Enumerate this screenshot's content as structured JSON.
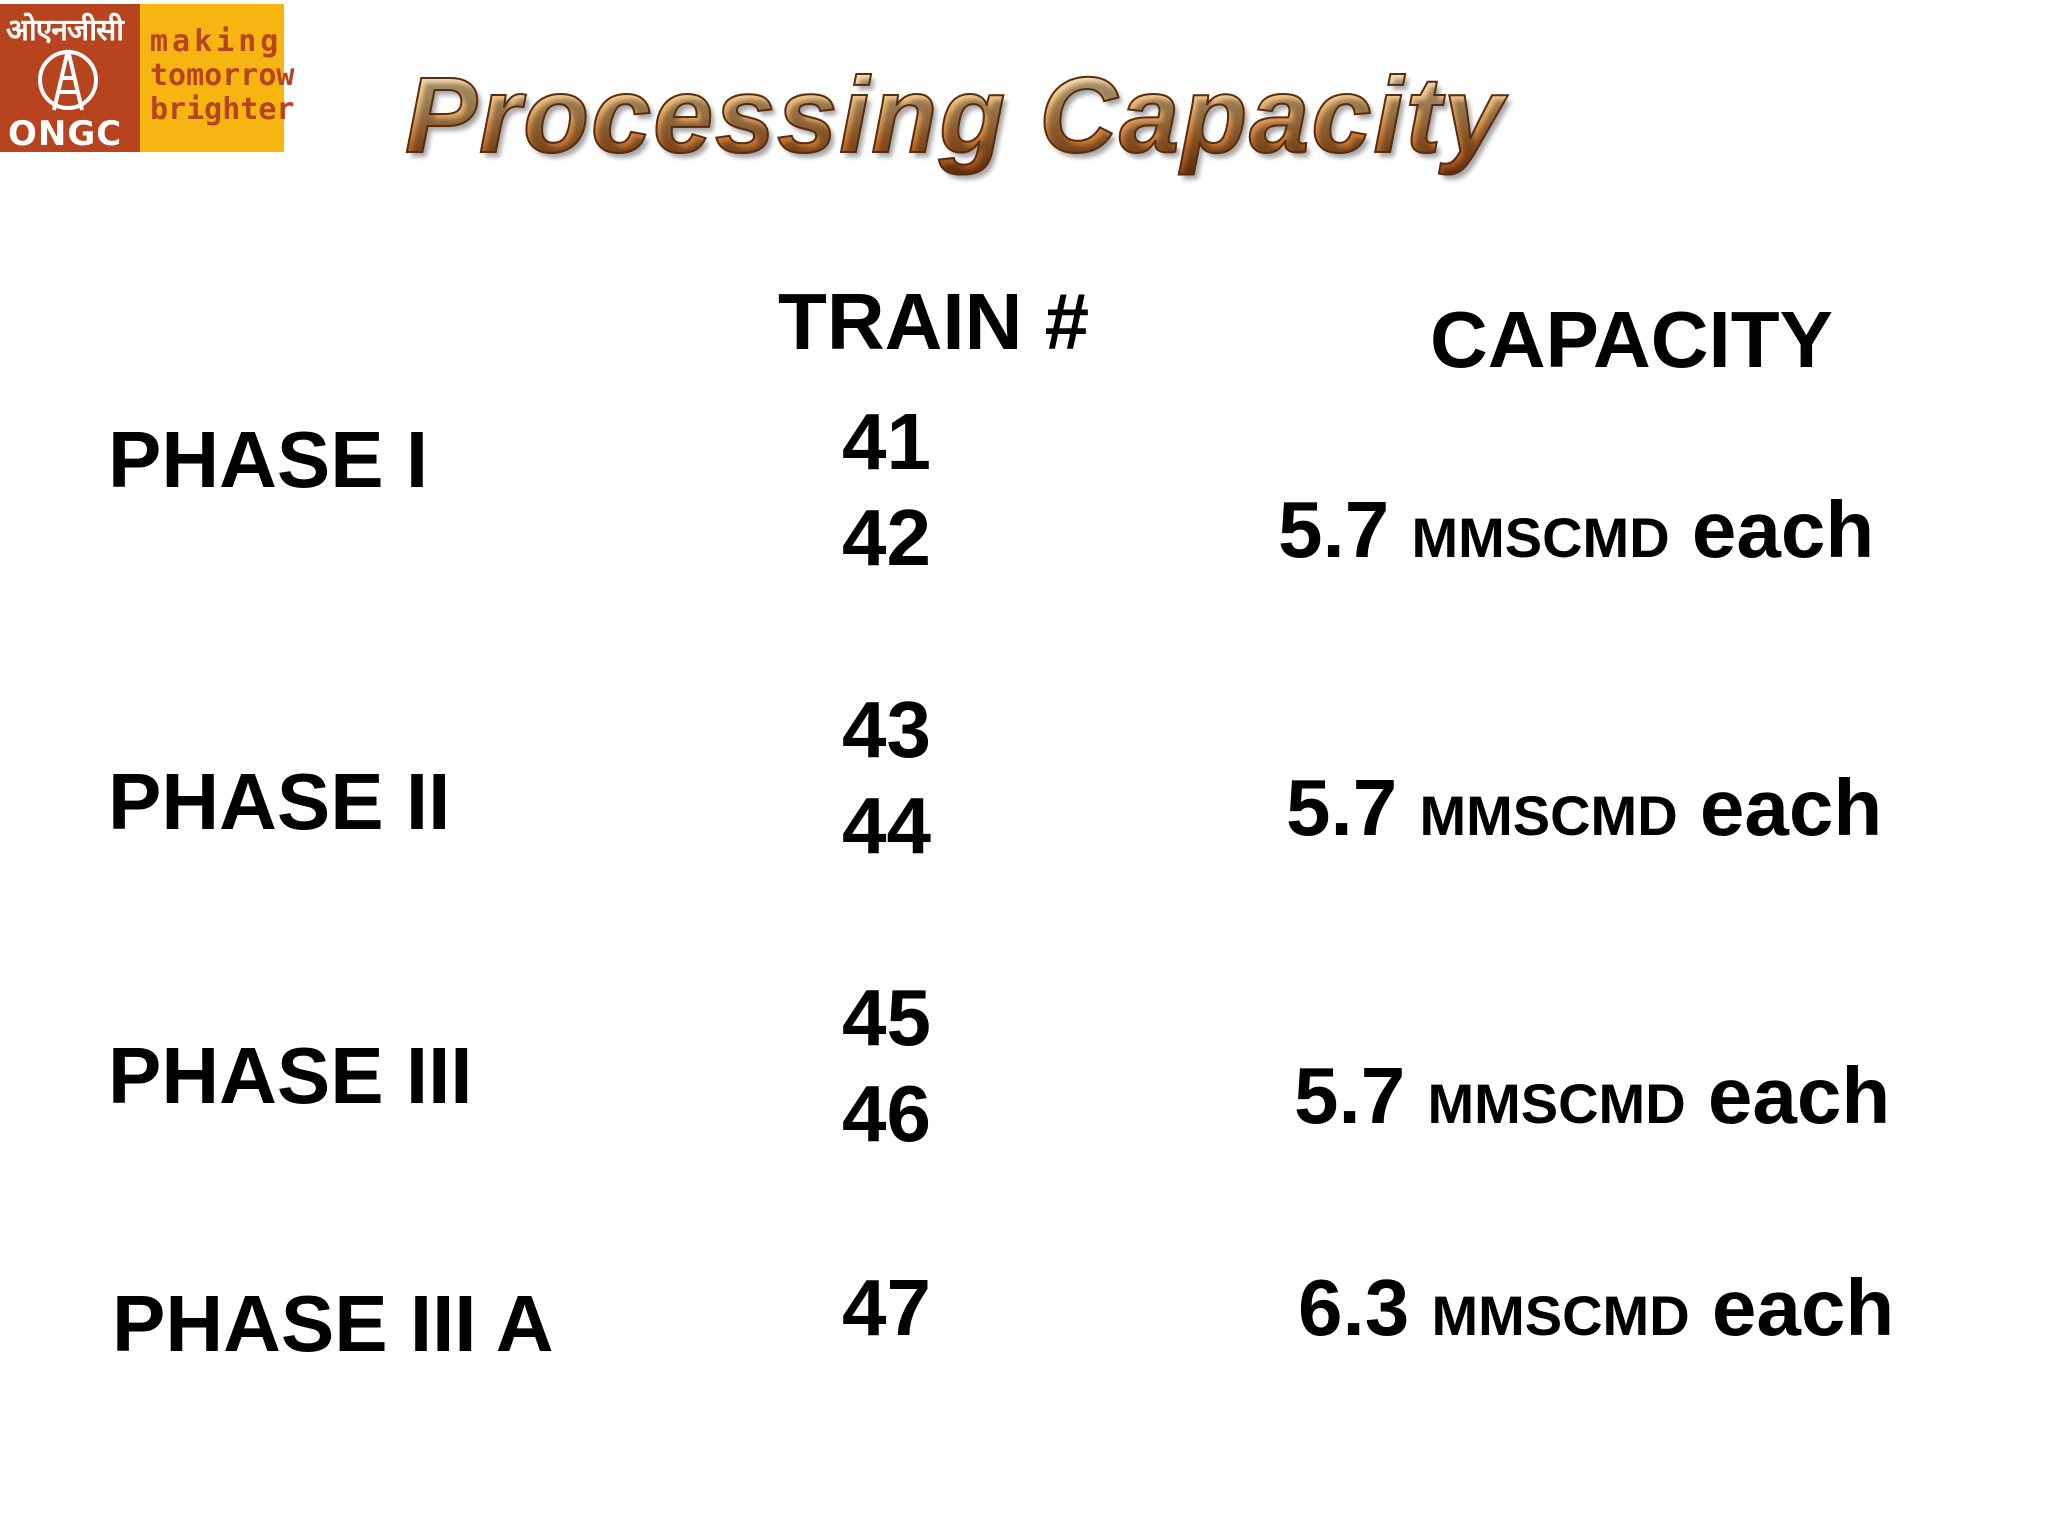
{
  "logo": {
    "hindi": "ओएनजीसी",
    "name": "ONGC",
    "tagline": [
      "making",
      "tomorrow",
      "brighter"
    ],
    "colors": {
      "red": "#b8431f",
      "yellow": "#f7b512"
    }
  },
  "title": "Processing Capacity",
  "headers": {
    "train": "TRAIN #",
    "capacity": "CAPACITY"
  },
  "rows": [
    {
      "phase": "PHASE  I",
      "trains": [
        "41",
        "42"
      ],
      "capacity_value": "5.7",
      "capacity_unit": "MMSCMD",
      "capacity_suffix": "each"
    },
    {
      "phase": "PHASE  II",
      "trains": [
        "43",
        "44"
      ],
      "capacity_value": "5.7",
      "capacity_unit": "MMSCMD",
      "capacity_suffix": "each"
    },
    {
      "phase": "PHASE  III",
      "trains": [
        "45",
        "46"
      ],
      "capacity_value": "5.7",
      "capacity_unit": "MMSCMD",
      "capacity_suffix": "each"
    },
    {
      "phase": "PHASE  III A",
      "trains": [
        "47"
      ],
      "capacity_value": "6.3",
      "capacity_unit": "MMSCMD",
      "capacity_suffix": "each"
    }
  ]
}
